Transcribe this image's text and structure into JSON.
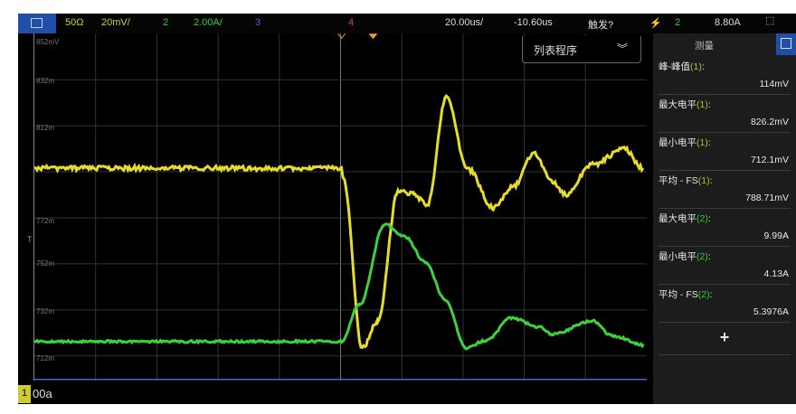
{
  "topbar": {
    "impedance": "50Ω",
    "ch1_scale": "20mV/",
    "ch2_num": "2",
    "ch2_scale": "2.00A/",
    "ch3_num": "3",
    "ch4_num": "4",
    "timebase": "20.00us/",
    "delay": "-10.60us",
    "trigger_status": "触发?",
    "trigger_source": "2",
    "trigger_level": "8.80A"
  },
  "list_button": {
    "label": "列表程序",
    "icon": "double-chevron-down"
  },
  "y_axis_labels": [
    "852mV",
    "832m",
    "812m",
    "772m",
    "752m",
    "732m",
    "712m"
  ],
  "trigger_marker": "T",
  "measure_panel": {
    "title": "测量",
    "items": [
      {
        "name": "峰-峰值",
        "ch": "(1)",
        "suffix": ":",
        "value": "114mV"
      },
      {
        "name": "最大电平",
        "ch": "(1)",
        "suffix": ":",
        "value": "826.2mV"
      },
      {
        "name": "最小电平",
        "ch": "(1)",
        "suffix": ":",
        "value": "712.1mV"
      },
      {
        "name": "平均 - FS",
        "ch": "(1)",
        "suffix": ":",
        "value": "788.71mV"
      },
      {
        "name": "最大电平",
        "ch": "(2)",
        "suffix": ":",
        "value": "9.99A"
      },
      {
        "name": "最小电平",
        "ch": "(2)",
        "suffix": ":",
        "value": "4.13A"
      },
      {
        "name": "平均 - FS",
        "ch": "(2)",
        "suffix": ":",
        "value": "5.3976A"
      }
    ],
    "add_label": "+"
  },
  "bottom": {
    "channel": "1",
    "label": "00a"
  },
  "colors": {
    "ch1": "#e6dc2a",
    "ch2": "#3cd23c",
    "ch3": "#5060d0",
    "ch4": "#d04050",
    "accent": "#1f4fa8"
  }
}
